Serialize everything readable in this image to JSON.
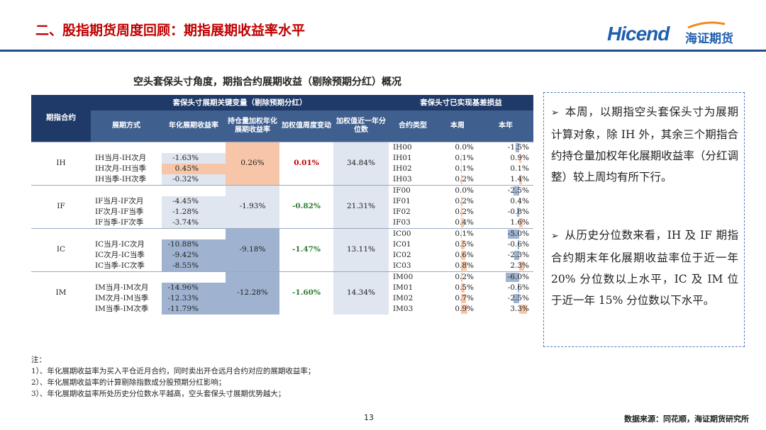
{
  "title": "二、股指期货周度回顾：期指展期收益率水平",
  "brand": {
    "logo_text": "Hicend",
    "cn_name": "海证期货"
  },
  "subtitle": "空头套保头寸角度，期指合约展期收益（剔除预期分红）概况",
  "table": {
    "group_left": "套保头寸展期关键变量（剔除预期分红）",
    "group_right": "套保头寸已实现基差损益",
    "headers": [
      "期指合约",
      "展期方式",
      "年化展期收益率",
      "持仓量加权年化展期收益率",
      "加权值周度变动",
      "加权值近一年分位数",
      "合约类型",
      "本周",
      "本年"
    ],
    "groups": [
      {
        "name": "IH",
        "avg": "0.26%",
        "change": "0.01%",
        "change_color": "#c00000",
        "pct": "34.84%",
        "pairs": [
          {
            "label": "IH当月-IH次月",
            "value": "-1.63%"
          },
          {
            "label": "IH次月-IH当季",
            "value": "0.45%"
          },
          {
            "label": "IH当季-IH次季",
            "value": "-0.32%"
          }
        ],
        "contracts": [
          {
            "type": "IH00",
            "week": "0.0%",
            "year": "-1.5%"
          },
          {
            "type": "IH01",
            "week": "0.1%",
            "year": "0.9%"
          },
          {
            "type": "IH02",
            "week": "0.1%",
            "year": "0.1%"
          },
          {
            "type": "IH03",
            "week": "0.2%",
            "year": "1.4%"
          }
        ]
      },
      {
        "name": "IF",
        "avg": "-1.93%",
        "change": "-0.82%",
        "change_color": "#2e7d32",
        "pct": "21.31%",
        "pairs": [
          {
            "label": "IF当月-IF次月",
            "value": "-4.45%"
          },
          {
            "label": "IF次月-IF当季",
            "value": "-1.28%"
          },
          {
            "label": "IF当季-IF次季",
            "value": "-3.74%"
          }
        ],
        "contracts": [
          {
            "type": "IF00",
            "week": "0.0%",
            "year": "-2.5%"
          },
          {
            "type": "IF01",
            "week": "0.2%",
            "year": "0.4%"
          },
          {
            "type": "IF02",
            "week": "0.2%",
            "year": "-0.8%"
          },
          {
            "type": "IF03",
            "week": "0.4%",
            "year": "1.6%"
          }
        ]
      },
      {
        "name": "IC",
        "avg": "-9.18%",
        "change": "-1.47%",
        "change_color": "#2e7d32",
        "pct": "13.11%",
        "pairs": [
          {
            "label": "IC当月-IC次月",
            "value": "-10.88%"
          },
          {
            "label": "IC次月-IC当季",
            "value": "-9.42%"
          },
          {
            "label": "IC当季-IC次季",
            "value": "-8.55%"
          }
        ],
        "contracts": [
          {
            "type": "IC00",
            "week": "0.1%",
            "year": "-5.0%"
          },
          {
            "type": "IC01",
            "week": "0.5%",
            "year": "-0.6%"
          },
          {
            "type": "IC02",
            "week": "0.6%",
            "year": "-2.3%"
          },
          {
            "type": "IC03",
            "week": "0.8%",
            "year": "2.3%"
          }
        ]
      },
      {
        "name": "IM",
        "avg": "-12.28%",
        "change": "-1.60%",
        "change_color": "#2e7d32",
        "pct": "14.34%",
        "pairs": [
          {
            "label": "IM当月-IM次月",
            "value": "-14.96%"
          },
          {
            "label": "IM次月-IM当季",
            "value": "-12.33%"
          },
          {
            "label": "IM当季-IM次季",
            "value": "-11.79%"
          }
        ],
        "contracts": [
          {
            "type": "IM00",
            "week": "0.2%",
            "year": "-6.0%"
          },
          {
            "type": "IM01",
            "week": "0.5%",
            "year": "-0.6%"
          },
          {
            "type": "IM02",
            "week": "0.7%",
            "year": "-2.5%"
          },
          {
            "type": "IM03",
            "week": "0.9%",
            "year": "3.3%"
          }
        ]
      }
    ]
  },
  "commentary": [
    "本周，以期指空头套保头寸为展期计算对象，除 IH 外，其余三个期指合约持仓量加权年化展期收益率（分红调整）较上周均有所下行。",
    "从历史分位数来看，IH 及 IF 期指合约期末年化展期收益率位于近一年 20% 分位数以上水平，IC 及 IM 位于近一年 15% 分位数以下水平。"
  ],
  "notes": [
    "注：",
    "1）、年化展期收益率为买入平仓近月合约，同时卖出开仓远月合约对应的展期收益率；",
    "2）、年化展期收益率的计算剔除指数成分股预期分红影响；",
    "3）、年化展期收益率所处历史分位数水平越高，空头套保头寸展期优势越大；"
  ],
  "page_number": "13",
  "source": "数据来源：同花顺，海证期货研究所",
  "colors": {
    "accent_red": "#c00000",
    "header_navy": "#1f3a68",
    "brand_blue": "#1f5fae",
    "positive_fill": "#f7c6a8",
    "negative_fill": "#9fb3d1"
  }
}
